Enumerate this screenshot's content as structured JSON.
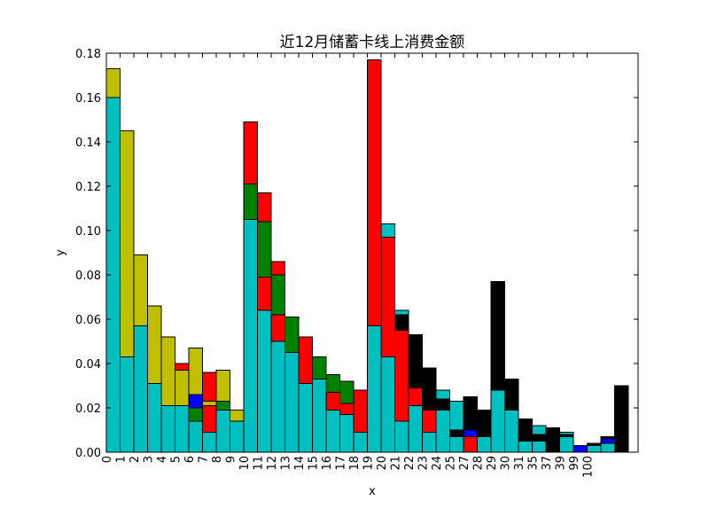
{
  "chart_data": {
    "type": "bar",
    "stacked": true,
    "title": "近12月储蓄卡线上消费金额",
    "xlabel": "x",
    "ylabel": "y",
    "ylim": [
      0,
      0.18
    ],
    "yticks": [
      "0.00",
      "0.02",
      "0.04",
      "0.06",
      "0.08",
      "0.10",
      "0.12",
      "0.14",
      "0.16",
      "0.18"
    ],
    "ytick_values": [
      0,
      0.02,
      0.04,
      0.06,
      0.08,
      0.1,
      0.12,
      0.14,
      0.16,
      0.18
    ],
    "xticks": [
      "0",
      "1",
      "2",
      "3",
      "4",
      "5",
      "6",
      "7",
      "8",
      "9",
      "10",
      "11",
      "12",
      "13",
      "14",
      "15",
      "16",
      "17",
      "18",
      "19",
      "20",
      "21",
      "22",
      "23",
      "24",
      "25",
      "27",
      "28",
      "29",
      "30",
      "31",
      "35",
      "37",
      "39",
      "99",
      "100"
    ],
    "grid": false,
    "colors": {
      "cyan": "#00bfbf",
      "olive": "#bfbf00",
      "red": "#ff0000",
      "green": "#008000",
      "blue": "#0000ff",
      "black": "#000000"
    },
    "bars": [
      {
        "x": "0",
        "segments": [
          [
            "cyan",
            0.16
          ],
          [
            "olive",
            0.013
          ]
        ]
      },
      {
        "x": "1",
        "segments": [
          [
            "cyan",
            0.043
          ],
          [
            "olive",
            0.102
          ]
        ]
      },
      {
        "x": "2",
        "segments": [
          [
            "cyan",
            0.057
          ],
          [
            "olive",
            0.032
          ]
        ]
      },
      {
        "x": "3",
        "segments": [
          [
            "cyan",
            0.031
          ],
          [
            "olive",
            0.035
          ]
        ]
      },
      {
        "x": "4",
        "segments": [
          [
            "cyan",
            0.021
          ],
          [
            "olive",
            0.031
          ]
        ]
      },
      {
        "x": "5",
        "segments": [
          [
            "cyan",
            0.021
          ],
          [
            "olive",
            0.016
          ],
          [
            "red",
            0.003
          ]
        ]
      },
      {
        "x": "6",
        "segments": [
          [
            "cyan",
            0.014
          ],
          [
            "green",
            0.006
          ],
          [
            "blue",
            0.006
          ],
          [
            "olive",
            0.021
          ]
        ]
      },
      {
        "x": "7",
        "segments": [
          [
            "cyan",
            0.009
          ],
          [
            "red",
            0.012
          ],
          [
            "olive",
            0.002
          ],
          [
            "red",
            0.013
          ]
        ]
      },
      {
        "x": "8",
        "segments": [
          [
            "cyan",
            0.019
          ],
          [
            "green",
            0.004
          ],
          [
            "olive",
            0.014
          ]
        ]
      },
      {
        "x": "9",
        "segments": [
          [
            "cyan",
            0.014
          ],
          [
            "olive",
            0.005
          ]
        ]
      },
      {
        "x": "10",
        "segments": [
          [
            "cyan",
            0.105
          ],
          [
            "green",
            0.016
          ],
          [
            "red",
            0.028
          ]
        ]
      },
      {
        "x": "11",
        "segments": [
          [
            "cyan",
            0.064
          ],
          [
            "red",
            0.015
          ],
          [
            "green",
            0.025
          ],
          [
            "red",
            0.013
          ]
        ]
      },
      {
        "x": "12",
        "segments": [
          [
            "cyan",
            0.05
          ],
          [
            "red",
            0.012
          ],
          [
            "green",
            0.018
          ],
          [
            "red",
            0.006
          ]
        ]
      },
      {
        "x": "13",
        "segments": [
          [
            "cyan",
            0.045
          ],
          [
            "green",
            0.016
          ]
        ]
      },
      {
        "x": "14",
        "segments": [
          [
            "cyan",
            0.031
          ],
          [
            "red",
            0.021
          ]
        ]
      },
      {
        "x": "15",
        "segments": [
          [
            "cyan",
            0.033
          ],
          [
            "green",
            0.01
          ]
        ]
      },
      {
        "x": "16",
        "segments": [
          [
            "cyan",
            0.019
          ],
          [
            "red",
            0.008
          ],
          [
            "green",
            0.008
          ]
        ]
      },
      {
        "x": "17",
        "segments": [
          [
            "cyan",
            0.017
          ],
          [
            "red",
            0.005
          ],
          [
            "green",
            0.01
          ]
        ]
      },
      {
        "x": "18",
        "segments": [
          [
            "cyan",
            0.009
          ],
          [
            "red",
            0.019
          ]
        ]
      },
      {
        "x": "19",
        "segments": [
          [
            "cyan",
            0.057
          ],
          [
            "red",
            0.12
          ]
        ]
      },
      {
        "x": "20",
        "segments": [
          [
            "cyan",
            0.043
          ],
          [
            "red",
            0.054
          ],
          [
            "cyan",
            0.006
          ]
        ]
      },
      {
        "x": "21",
        "segments": [
          [
            "cyan",
            0.014
          ],
          [
            "red",
            0.041
          ],
          [
            "black",
            0.007
          ],
          [
            "cyan",
            0.002
          ]
        ]
      },
      {
        "x": "22",
        "segments": [
          [
            "cyan",
            0.021
          ],
          [
            "red",
            0.008
          ],
          [
            "black",
            0.024
          ]
        ]
      },
      {
        "x": "23",
        "segments": [
          [
            "cyan",
            0.009
          ],
          [
            "red",
            0.01
          ],
          [
            "black",
            0.019
          ]
        ]
      },
      {
        "x": "24",
        "segments": [
          [
            "cyan",
            0.019
          ],
          [
            "black",
            0.005
          ],
          [
            "cyan",
            0.004
          ]
        ]
      },
      {
        "x": "25",
        "segments": [
          [
            "cyan",
            0.007
          ],
          [
            "black",
            0.003
          ],
          [
            "cyan",
            0.013
          ]
        ]
      },
      {
        "x": "27",
        "segments": [
          [
            "red",
            0.007
          ],
          [
            "blue",
            0.003
          ],
          [
            "black",
            0.015
          ]
        ]
      },
      {
        "x": "28",
        "segments": [
          [
            "cyan",
            0.007
          ],
          [
            "black",
            0.012
          ]
        ]
      },
      {
        "x": "29",
        "segments": [
          [
            "cyan",
            0.028
          ],
          [
            "black",
            0.049
          ]
        ]
      },
      {
        "x": "30",
        "segments": [
          [
            "cyan",
            0.019
          ],
          [
            "black",
            0.014
          ]
        ]
      },
      {
        "x": "31",
        "segments": [
          [
            "cyan",
            0.005
          ],
          [
            "black",
            0.01
          ]
        ]
      },
      {
        "x": "35",
        "segments": [
          [
            "cyan",
            0.005
          ],
          [
            "black",
            0.003
          ],
          [
            "cyan",
            0.004
          ]
        ]
      },
      {
        "x": "37",
        "segments": [
          [
            "black",
            0.011
          ]
        ]
      },
      {
        "x": "39",
        "segments": [
          [
            "cyan",
            0.007
          ],
          [
            "black",
            0.001
          ],
          [
            "cyan",
            0.001
          ]
        ]
      },
      {
        "x": "99",
        "segments": [
          [
            "blue",
            0.003
          ]
        ]
      },
      {
        "x": "100",
        "segments": [
          [
            "cyan",
            0.003
          ],
          [
            "black",
            0.001
          ]
        ]
      },
      {
        "x": "",
        "segments": [
          [
            "cyan",
            0.004
          ],
          [
            "blue",
            0.002
          ],
          [
            "black",
            0.001
          ]
        ]
      },
      {
        "x": "",
        "segments": [
          [
            "black",
            0.03
          ]
        ]
      }
    ]
  }
}
